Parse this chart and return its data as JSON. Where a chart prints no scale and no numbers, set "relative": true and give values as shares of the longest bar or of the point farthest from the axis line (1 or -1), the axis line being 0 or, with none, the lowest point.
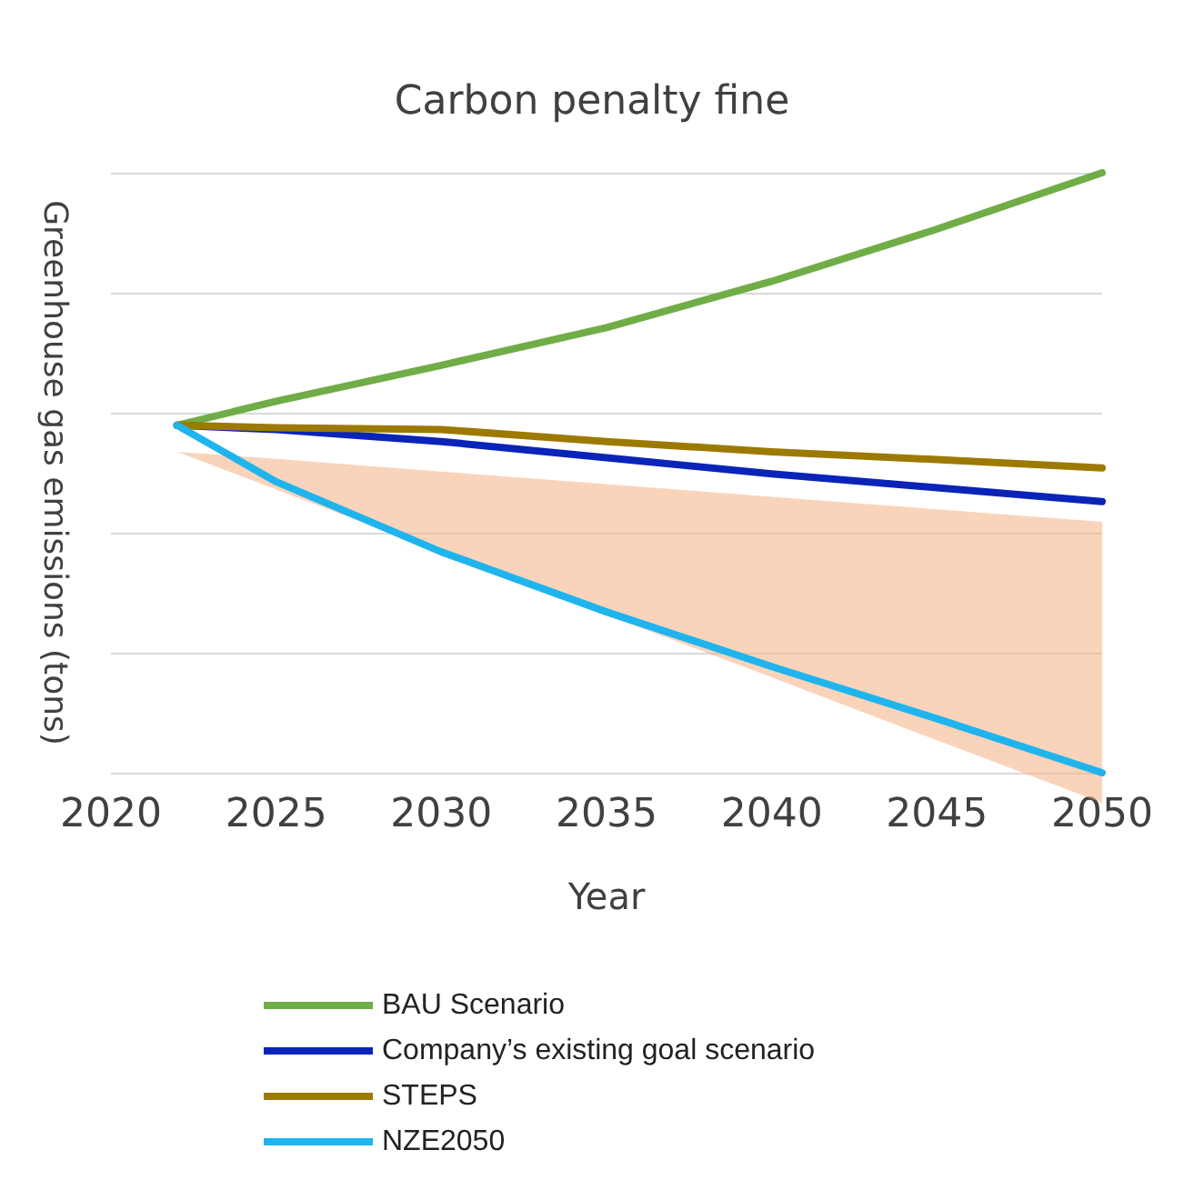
{
  "chart_data": {
    "type": "line",
    "title": "Carbon penalty fine",
    "xlabel": "Year",
    "ylabel": "Greenhouse gas emissions (tons)",
    "relative": true,
    "x": [
      2022,
      2025,
      2030,
      2035,
      2040,
      2045,
      2050
    ],
    "xlim": [
      2020,
      2050
    ],
    "xticks": [
      2020,
      2025,
      2030,
      2035,
      2040,
      2045,
      2050
    ],
    "grid": "y",
    "legend": "bottom",
    "marker": "none",
    "line_style": "solid",
    "series": [
      {
        "name": "BAU Scenario",
        "color": "#70ad47",
        "values": [
          0.579,
          0.619,
          0.679,
          0.742,
          0.819,
          0.906,
          1
        ]
      },
      {
        "name": "Company’s existing goal scenario",
        "color": "#0a24b8",
        "values": [
          0.579,
          0.572,
          0.552,
          0.525,
          0.498,
          0.475,
          0.452
        ]
      },
      {
        "name": "STEPS",
        "color": "#9c7a00",
        "values": [
          0.579,
          0.575,
          0.572,
          0.552,
          0.535,
          0.522,
          0.508
        ]
      },
      {
        "name": "NZE2050",
        "color": "#1fb4ee",
        "values": [
          0.579,
          0.485,
          0.368,
          0.268,
          0.177,
          0.09,
          0
        ],
        "lower": [
          0.535,
          0.472,
          0.368,
          0.263,
          0.159,
          0.054,
          -0.05
        ],
        "upper": [
          0.535,
          0.523,
          0.502,
          0.481,
          0.46,
          0.439,
          0.418
        ]
      }
    ]
  }
}
